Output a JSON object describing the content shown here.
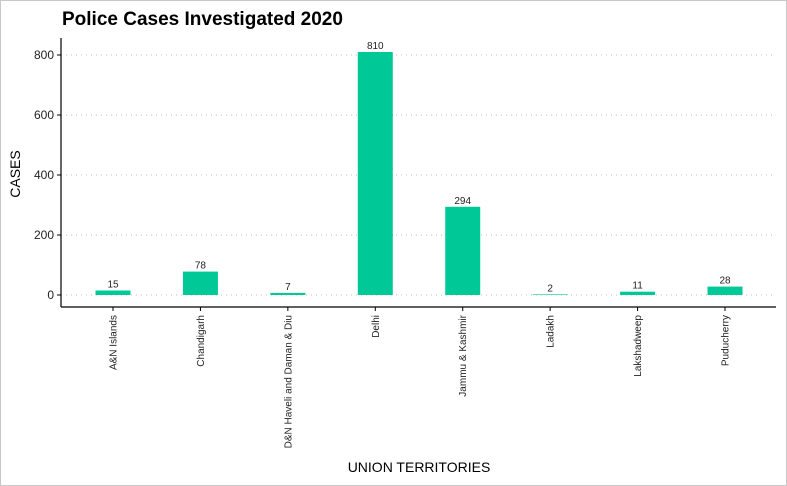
{
  "chart_data": {
    "type": "bar",
    "title": "Police Cases Investigated 2020",
    "xlabel": "UNION TERRITORIES",
    "ylabel": "CASES",
    "categories": [
      "A&N Islands",
      "Chandigarh",
      "D&N Haveli and Daman & Diu",
      "Delhi",
      "Jammu & Kashmir",
      "Ladakh",
      "Lakshadweep",
      "Puducherry"
    ],
    "values": [
      15,
      78,
      7,
      810,
      294,
      2,
      11,
      28
    ],
    "ylim": [
      0,
      850
    ],
    "yticks": [
      0,
      200,
      400,
      600,
      800
    ],
    "grid": "horizontal-dotted",
    "bar_color": "#00c896"
  }
}
